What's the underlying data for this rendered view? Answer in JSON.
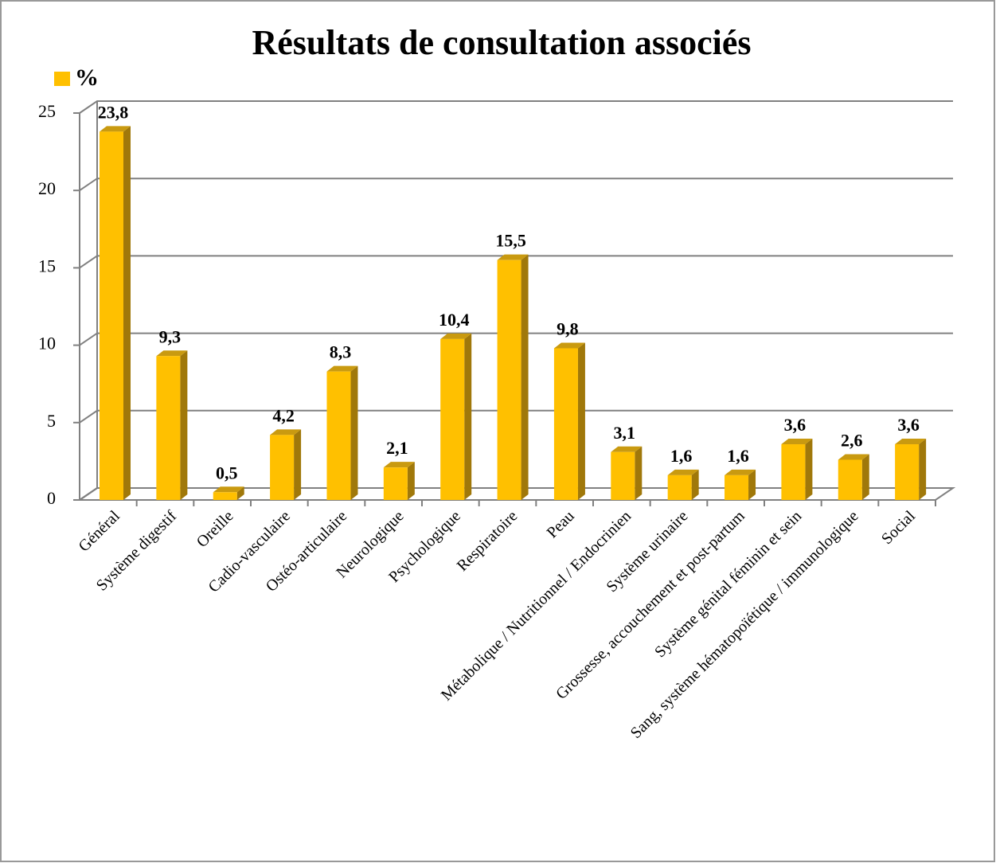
{
  "chart_data": {
    "type": "bar",
    "title": "Résultats de consultation associés",
    "categories": [
      "Général",
      "Système digestif",
      "Oreille",
      "Cadio-vasculaire",
      "Ostéo-articulaire",
      "Neurologique",
      "Psychologique",
      "Respiratoire",
      "Peau",
      "Métabolique / Nutritionnel / Endocrinien",
      "Système urinaire",
      "Grossesse, accouchement et post-partum",
      "Système génital féminin et sein",
      "Sang, système hématopoïétique / immunologique",
      "Social"
    ],
    "series": [
      {
        "name": "%",
        "color": "#ffc000",
        "values": [
          23.8,
          9.3,
          0.5,
          4.2,
          8.3,
          2.1,
          10.4,
          15.5,
          9.8,
          3.1,
          1.6,
          1.6,
          3.6,
          2.6,
          3.6
        ],
        "value_labels": [
          "23,8",
          "9,3",
          "0,5",
          "4,2",
          "8,3",
          "2,1",
          "10,4",
          "15,5",
          "9,8",
          "3,1",
          "1,6",
          "1,6",
          "3,6",
          "2,6",
          "3,6"
        ]
      }
    ],
    "ylim": [
      0,
      25
    ],
    "yticks": [
      0,
      5,
      10,
      15,
      20,
      25
    ],
    "grid": true,
    "legend": "top-left"
  }
}
